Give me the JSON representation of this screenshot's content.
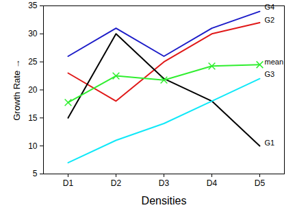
{
  "chart_data": {
    "type": "line",
    "x_label": "Densities",
    "y_label": "Growth Rate",
    "categories": [
      "D1",
      "D2",
      "D3",
      "D4",
      "D5"
    ],
    "series": [
      {
        "name": "G4",
        "color": "#1c1cc8",
        "values": [
          26,
          31,
          26,
          31,
          34
        ]
      },
      {
        "name": "G2",
        "color": "#e01818",
        "values": [
          23,
          18,
          25,
          30,
          32
        ]
      },
      {
        "name": "G1",
        "color": "#000000",
        "values": [
          15,
          30,
          22,
          18,
          10
        ]
      },
      {
        "name": "G3",
        "color": "#10e8f8",
        "values": [
          7,
          11,
          14,
          18,
          22
        ]
      },
      {
        "name": "mean",
        "color": "#30ee30",
        "marker": "x",
        "values": [
          17.75,
          22.5,
          21.75,
          24.25,
          24.5
        ]
      }
    ],
    "ylim": [
      5,
      35
    ],
    "yticks": [
      5,
      10,
      15,
      20,
      25,
      30,
      35
    ],
    "grid": false
  }
}
